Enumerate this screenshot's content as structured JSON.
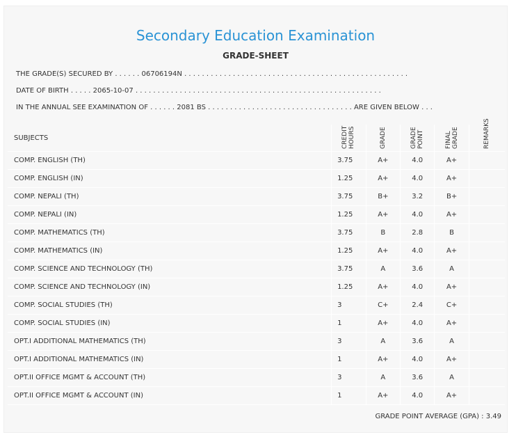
{
  "header": {
    "title": "Secondary Education Examination",
    "subtitle": "GRADE-SHEET"
  },
  "info": [
    {
      "label": "THE GRADE(S) SECURED BY . . . . . .",
      "value": "06706194N",
      "suffix": ". . . . . . . . . . . . . . . . . . . . . . . . . . . . . . . . . . . . . . . . . . . . . . . . . . ."
    },
    {
      "label": "DATE OF BIRTH . . . . .",
      "value": "2065-10-07",
      "suffix": ". . . . . . . . . . . . . . . . . . . . . . . . . . . . . . . . . . . . . . . . . . . . . . . . . . . . . . . ."
    },
    {
      "label": "IN THE ANNUAL SEE EXAMINATION OF . . . . . .",
      "value": "2081 BS",
      "suffix": ". . . . . . . . . . . . . . . . . . . . . . . . . . . . . . . . . ARE GIVEN BELOW . . ."
    }
  ],
  "table": {
    "columns": [
      "SUBJECTS",
      "CREDIT HOURS",
      "GRADE",
      "GRADE POINT",
      "FINAL GRADE",
      "REMARKS"
    ],
    "rows": [
      [
        "COMP. ENGLISH (TH)",
        "3.75",
        "A+",
        "4.0",
        "A+"
      ],
      [
        "COMP. ENGLISH (IN)",
        "1.25",
        "A+",
        "4.0",
        "A+"
      ],
      [
        "COMP. NEPALI (TH)",
        "3.75",
        "B+",
        "3.2",
        "B+"
      ],
      [
        "COMP. NEPALI (IN)",
        "1.25",
        "A+",
        "4.0",
        "A+"
      ],
      [
        "COMP. MATHEMATICS (TH)",
        "3.75",
        "B",
        "2.8",
        "B"
      ],
      [
        "COMP. MATHEMATICS (IN)",
        "1.25",
        "A+",
        "4.0",
        "A+"
      ],
      [
        "COMP. SCIENCE AND TECHNOLOGY (TH)",
        "3.75",
        "A",
        "3.6",
        "A"
      ],
      [
        "COMP. SCIENCE AND TECHNOLOGY (IN)",
        "1.25",
        "A+",
        "4.0",
        "A+"
      ],
      [
        "COMP. SOCIAL STUDIES (TH)",
        "3",
        "C+",
        "2.4",
        "C+"
      ],
      [
        "COMP. SOCIAL STUDIES (IN)",
        "1",
        "A+",
        "4.0",
        "A+"
      ],
      [
        "OPT.I ADDITIONAL MATHEMATICS (TH)",
        "3",
        "A",
        "3.6",
        "A"
      ],
      [
        "OPT.I ADDITIONAL MATHEMATICS (IN)",
        "1",
        "A+",
        "4.0",
        "A+"
      ],
      [
        "OPT.II OFFICE MGMT & ACCOUNT (TH)",
        "3",
        "A",
        "3.6",
        "A"
      ],
      [
        "OPT.II OFFICE MGMT & ACCOUNT (IN)",
        "1",
        "A+",
        "4.0",
        "A+"
      ]
    ]
  },
  "footer": {
    "gpa_label": "GRADE POINT AVERAGE (GPA) :",
    "gpa": "3.49"
  }
}
